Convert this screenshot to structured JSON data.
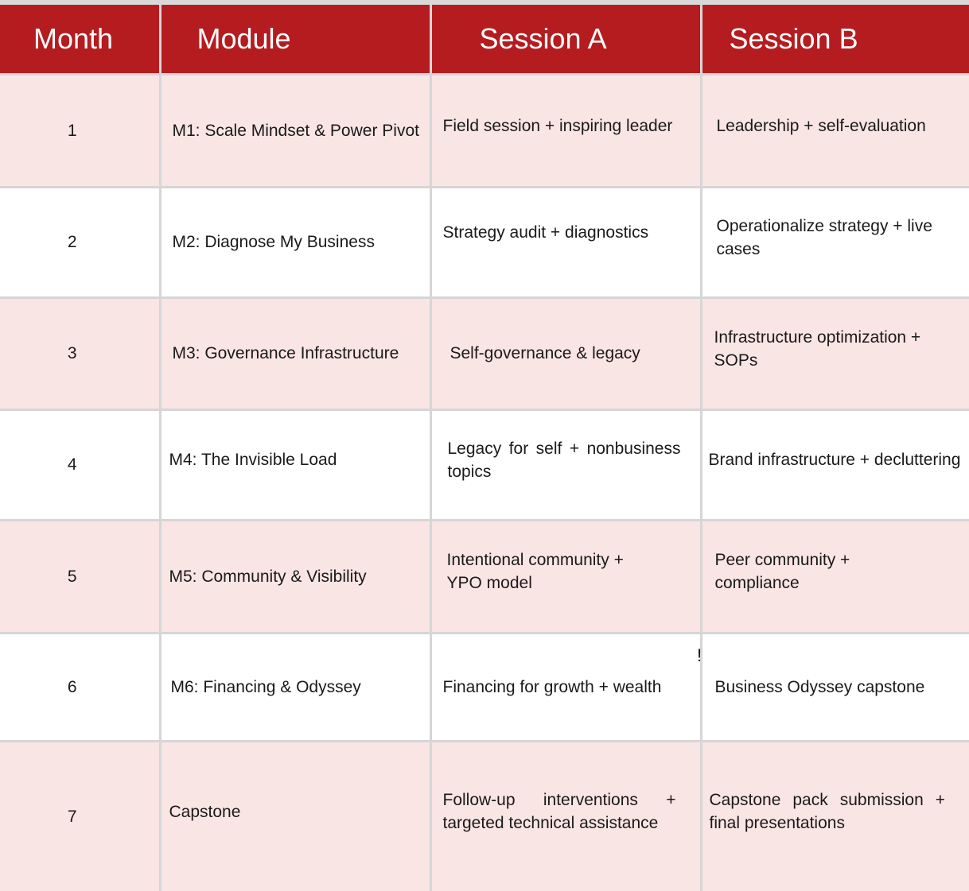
{
  "headers": {
    "month": "Month",
    "module": "Module",
    "session_a": "Session A",
    "session_b": "Session B"
  },
  "rows": [
    {
      "month": "1",
      "module": "M1: Scale Mindset & Power Pivot",
      "session_a": "Field session + inspiring leader",
      "session_b": "Leadership + self-evaluation"
    },
    {
      "month": "2",
      "module": "M2: Diagnose My Business",
      "session_a": "Strategy audit + diagnostics",
      "session_b": "Operationalize strategy + live cases"
    },
    {
      "month": "3",
      "module": "M3: Governance Infrastructure",
      "session_a": "Self-governance & legacy",
      "session_b": "Infrastructure optimization + SOPs"
    },
    {
      "month": "4",
      "module": "M4: The Invisible Load",
      "session_a": "Legacy for self + nonbusiness topics",
      "session_b": "Brand infrastructure + decluttering"
    },
    {
      "month": "5",
      "module": "M5: Community & Visibility",
      "session_a": "Intentional community + YPO model",
      "session_b": "Peer community + compliance"
    },
    {
      "month": "6",
      "module": "M6: Financing & Odyssey",
      "session_a": "Financing for growth + wealth",
      "session_b": "Business Odyssey capstone"
    },
    {
      "month": "7",
      "module": "Capstone",
      "session_a": "Follow-up interventions + targeted technical assistance",
      "session_b": "Capstone pack submission + final presentations"
    }
  ],
  "stray_mark": "!",
  "colors": {
    "header_bg": "#b51c1f",
    "header_text": "#ffffff",
    "row_pink": "#f9e5e4",
    "row_white": "#ffffff",
    "grid": "#d6d6d6"
  }
}
